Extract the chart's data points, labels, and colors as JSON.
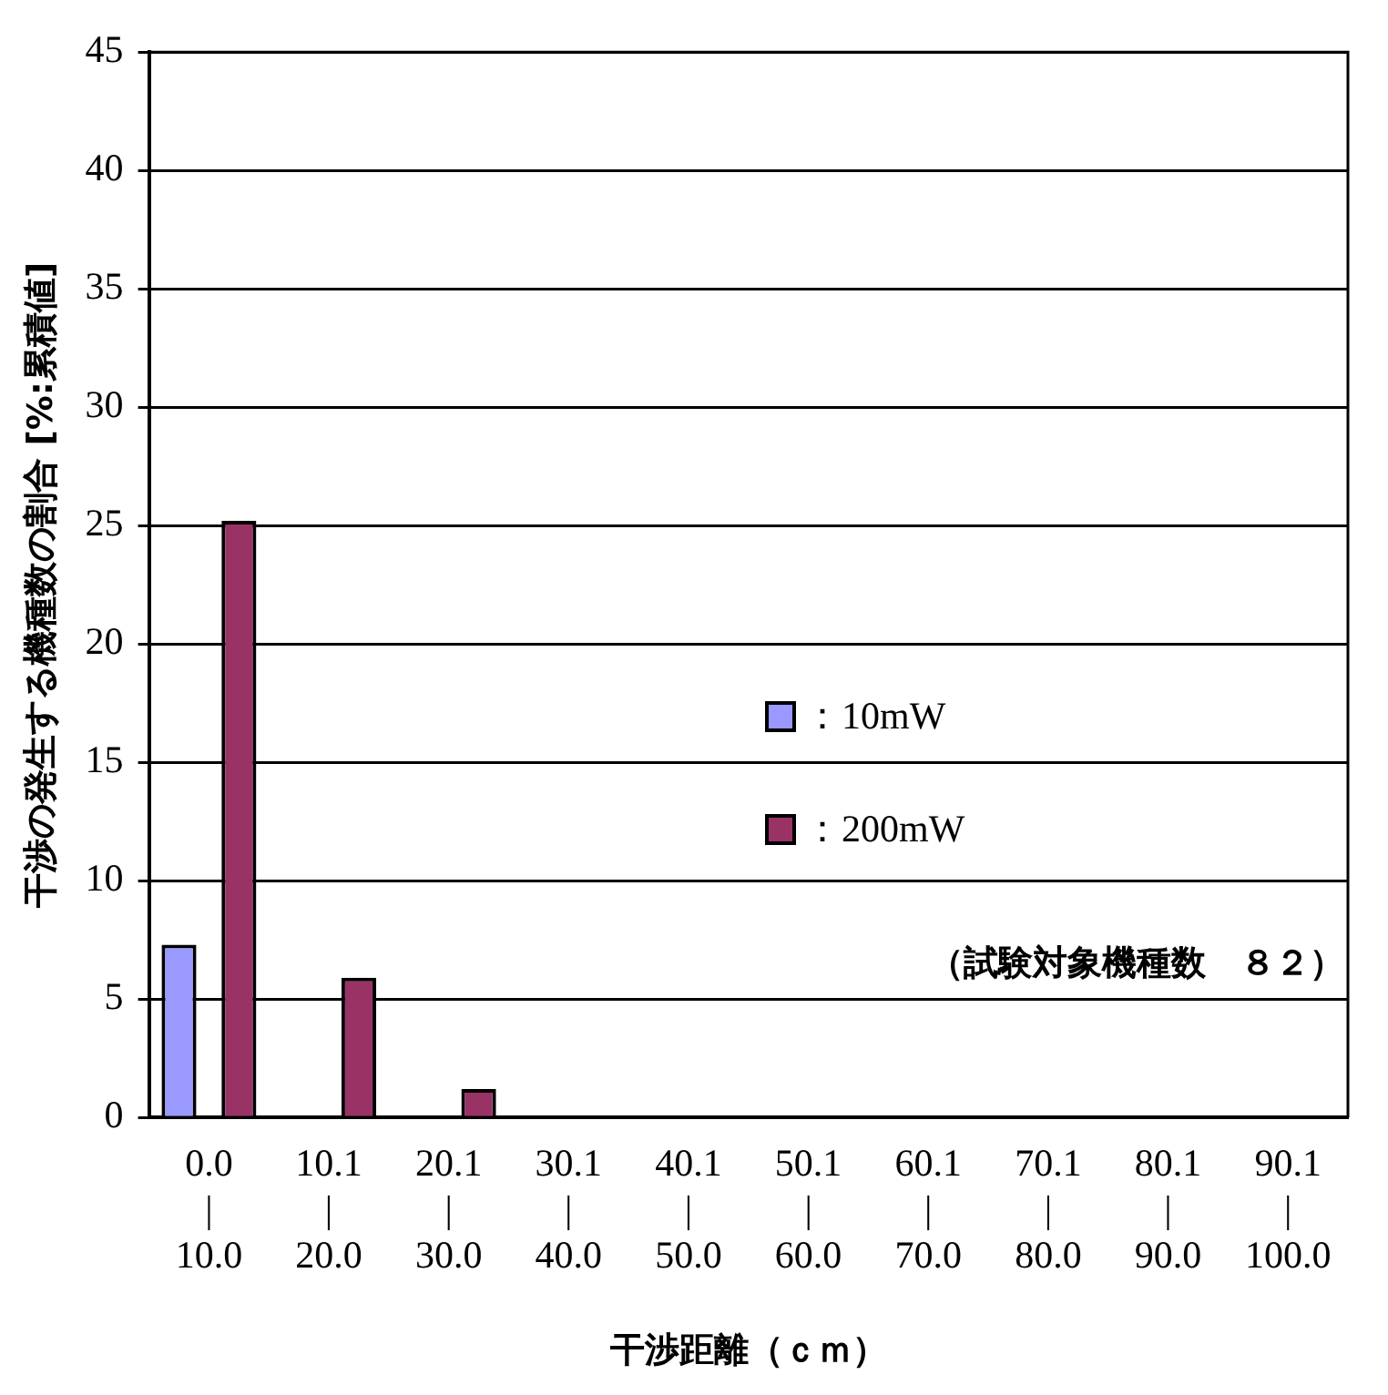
{
  "chart_data": {
    "type": "bar",
    "xlabel": "干渉距離（ｃｍ）",
    "ylabel": "干渉の発生する機種数の割合 [%:累積値]",
    "categories": [
      "0.0\n|\n10.0",
      "10.1\n|\n20.0",
      "20.1\n|\n30.0",
      "30.1\n|\n40.0",
      "40.1\n|\n50.0",
      "50.1\n|\n60.0",
      "60.1\n|\n70.0",
      "70.1\n|\n80.0",
      "80.1\n|\n90.0",
      "90.1\n|\n100.0"
    ],
    "series": [
      {
        "name": "：10mW",
        "color": "#9999ff",
        "values": [
          7.3,
          0,
          0,
          0,
          0,
          0,
          0,
          0,
          0,
          0
        ]
      },
      {
        "name": "：200mW",
        "color": "#993366",
        "values": [
          25.2,
          5.9,
          1.2,
          0,
          0,
          0,
          0,
          0,
          0,
          0
        ]
      }
    ],
    "ylim": [
      0,
      45
    ],
    "yticks": [
      0,
      5,
      10,
      15,
      20,
      25,
      30,
      35,
      40,
      45
    ],
    "grid": "y",
    "legend": "center",
    "annotations": [
      "（試験対象機種数　８２）"
    ]
  }
}
